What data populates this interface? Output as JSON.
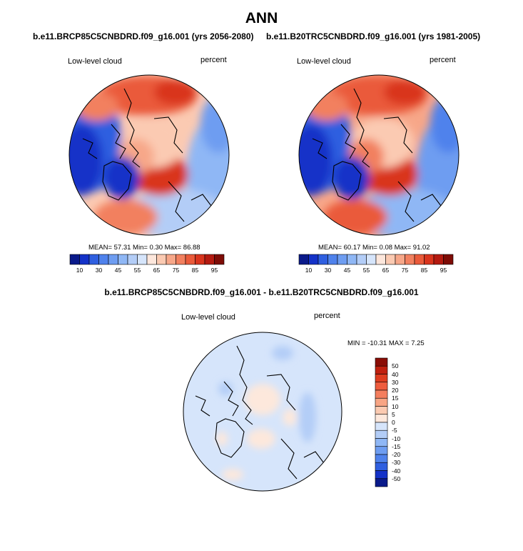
{
  "title": "ANN",
  "panels": [
    {
      "case": "b.e11.BRCP85C5CNBDRD.f09_g16.001 (yrs 2056-2080)",
      "variable": "Low-level cloud",
      "units": "percent",
      "stats": "MEAN=  57.31  Min=   0.30  Max=  86.88",
      "colorbar_labels": [
        "10",
        "30",
        "45",
        "55",
        "65",
        "75",
        "85",
        "95"
      ]
    },
    {
      "case": "b.e11.B20TRC5CNBDRD.f09_g16.001 (yrs 1981-2005)",
      "variable": "Low-level cloud",
      "units": "percent",
      "stats": "MEAN=  60.17  Min=   0.08  Max=  91.02",
      "colorbar_labels": [
        "10",
        "30",
        "45",
        "55",
        "65",
        "75",
        "85",
        "95"
      ]
    }
  ],
  "difference": {
    "title": "b.e11.BRCP85C5CNBDRD.f09_g16.001 - b.e11.B20TRC5CNBDRD.f09_g16.001",
    "variable": "Low-level cloud",
    "units": "percent",
    "stats": "MIN = -10.31 MAX =   7.25",
    "colorbar_labels": [
      "50",
      "40",
      "30",
      "20",
      "15",
      "10",
      "5",
      "0",
      "-5",
      "-10",
      "-15",
      "-20",
      "-30",
      "-40",
      "-50"
    ]
  },
  "colors": {
    "abs_scale": [
      "#0a1a8a",
      "#1432c8",
      "#2f5fe0",
      "#4f82ec",
      "#6e9df1",
      "#8fb7f5",
      "#b3cdf7",
      "#d6e5fb",
      "#fde7dc",
      "#fbcab2",
      "#f7a789",
      "#f2805f",
      "#ea5a3a",
      "#d9341d",
      "#b41a10",
      "#7e0c06"
    ],
    "diff_scale": [
      "#8a0d06",
      "#c0200f",
      "#de3c1f",
      "#ee5c3d",
      "#f47e5e",
      "#f8a584",
      "#fbcab1",
      "#fde8dc",
      "#d6e5fb",
      "#b3cdf7",
      "#8fb7f5",
      "#6e9df1",
      "#4f82ec",
      "#2f5fe0",
      "#1432c8",
      "#0a1a8a"
    ]
  }
}
